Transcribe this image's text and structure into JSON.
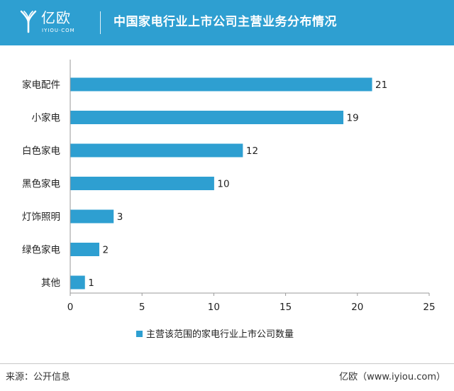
{
  "header": {
    "brand_cn": "亿欧",
    "brand_en": "IYIOU·COM",
    "title": "中国家电行业上市公司主营业务分布情况"
  },
  "colors": {
    "header_bg": "#2e9fd1",
    "bar": "#2e9fd1"
  },
  "chart_data": {
    "type": "bar",
    "orientation": "horizontal",
    "categories": [
      "家电配件",
      "小家电",
      "白色家电",
      "黑色家电",
      "灯饰照明",
      "绿色家电",
      "其他"
    ],
    "series": [
      {
        "name": "主营该范围的家电行业上市公司数量",
        "values": [
          21,
          19,
          12,
          10,
          3,
          2,
          1
        ]
      }
    ],
    "xlim": [
      0,
      25
    ],
    "xticks": [
      0,
      5,
      10,
      15,
      20,
      25
    ],
    "grid": false,
    "legend_position": "bottom"
  },
  "footer": {
    "source": "来源：公开信息",
    "credit": "亿欧（www.iyiou.com）"
  }
}
